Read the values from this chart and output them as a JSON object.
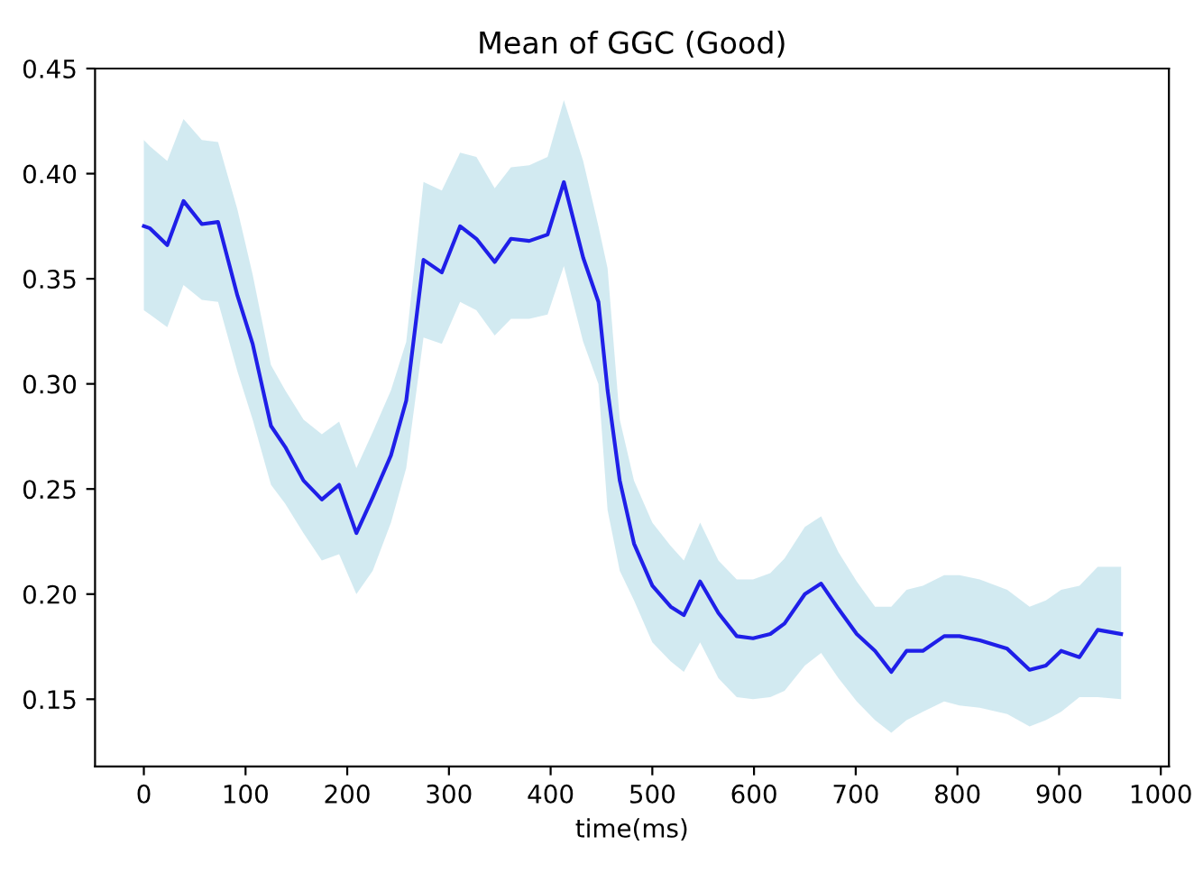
{
  "chart_data": {
    "type": "line",
    "title": "Mean of GGC (Good)",
    "xlabel": "time(ms)",
    "xlim": [
      -48,
      1008
    ],
    "xticks": [
      0,
      100,
      200,
      300,
      400,
      500,
      600,
      700,
      800,
      900,
      1000
    ],
    "ylim": [
      0.118,
      0.45
    ],
    "yticks": [
      0.15,
      {
        "value": 0.2,
        "label": "0.20"
      },
      0.25,
      {
        "value": 0.3,
        "label": "0.30"
      },
      0.35,
      {
        "value": 0.4,
        "label": "0.40"
      },
      0.45
    ],
    "grid": false,
    "series": [
      {
        "color": "#1f1fe8",
        "x": [
          0,
          6,
          23,
          39,
          57,
          73,
          92,
          107,
          125,
          139,
          157,
          175,
          192,
          209,
          225,
          243,
          258,
          275,
          293,
          311,
          327,
          345,
          361,
          379,
          397,
          413,
          432,
          447,
          456,
          468,
          482,
          500,
          518,
          531,
          547,
          565,
          583,
          599,
          616,
          630,
          650,
          666,
          683,
          701,
          719,
          735,
          750,
          766,
          787,
          802,
          822,
          849,
          871,
          887,
          902,
          920,
          938,
          961
        ],
        "values": [
          0.375,
          0.374,
          0.366,
          0.387,
          0.376,
          0.377,
          0.342,
          0.319,
          0.28,
          0.27,
          0.254,
          0.245,
          0.252,
          0.229,
          0.246,
          0.266,
          0.292,
          0.359,
          0.353,
          0.375,
          0.369,
          0.358,
          0.369,
          0.368,
          0.371,
          0.396,
          0.36,
          0.339,
          0.297,
          0.254,
          0.224,
          0.204,
          0.194,
          0.19,
          0.206,
          0.191,
          0.18,
          0.179,
          0.181,
          0.186,
          0.2,
          0.205,
          0.193,
          0.181,
          0.173,
          0.163,
          0.173,
          0.173,
          0.18,
          0.18,
          0.178,
          0.174,
          0.164,
          0.166,
          0.173,
          0.17,
          0.183,
          0.181
        ],
        "upper": [
          0.416,
          0.413,
          0.406,
          0.426,
          0.416,
          0.415,
          0.383,
          0.352,
          0.309,
          0.297,
          0.283,
          0.276,
          0.282,
          0.26,
          0.277,
          0.297,
          0.32,
          0.396,
          0.392,
          0.41,
          0.408,
          0.393,
          0.403,
          0.404,
          0.408,
          0.435,
          0.406,
          0.375,
          0.355,
          0.283,
          0.254,
          0.234,
          0.223,
          0.216,
          0.234,
          0.216,
          0.207,
          0.207,
          0.21,
          0.217,
          0.232,
          0.237,
          0.22,
          0.206,
          0.194,
          0.194,
          0.202,
          0.204,
          0.209,
          0.209,
          0.207,
          0.202,
          0.194,
          0.197,
          0.202,
          0.204,
          0.213,
          0.213
        ],
        "lower": [
          0.335,
          0.333,
          0.327,
          0.347,
          0.34,
          0.339,
          0.306,
          0.283,
          0.252,
          0.243,
          0.229,
          0.216,
          0.219,
          0.2,
          0.211,
          0.234,
          0.26,
          0.322,
          0.319,
          0.339,
          0.335,
          0.323,
          0.331,
          0.331,
          0.333,
          0.356,
          0.32,
          0.3,
          0.24,
          0.211,
          0.197,
          0.177,
          0.168,
          0.163,
          0.177,
          0.16,
          0.151,
          0.15,
          0.151,
          0.154,
          0.166,
          0.172,
          0.16,
          0.149,
          0.14,
          0.134,
          0.14,
          0.144,
          0.149,
          0.147,
          0.146,
          0.143,
          0.137,
          0.14,
          0.144,
          0.151,
          0.151,
          0.15
        ]
      }
    ]
  }
}
